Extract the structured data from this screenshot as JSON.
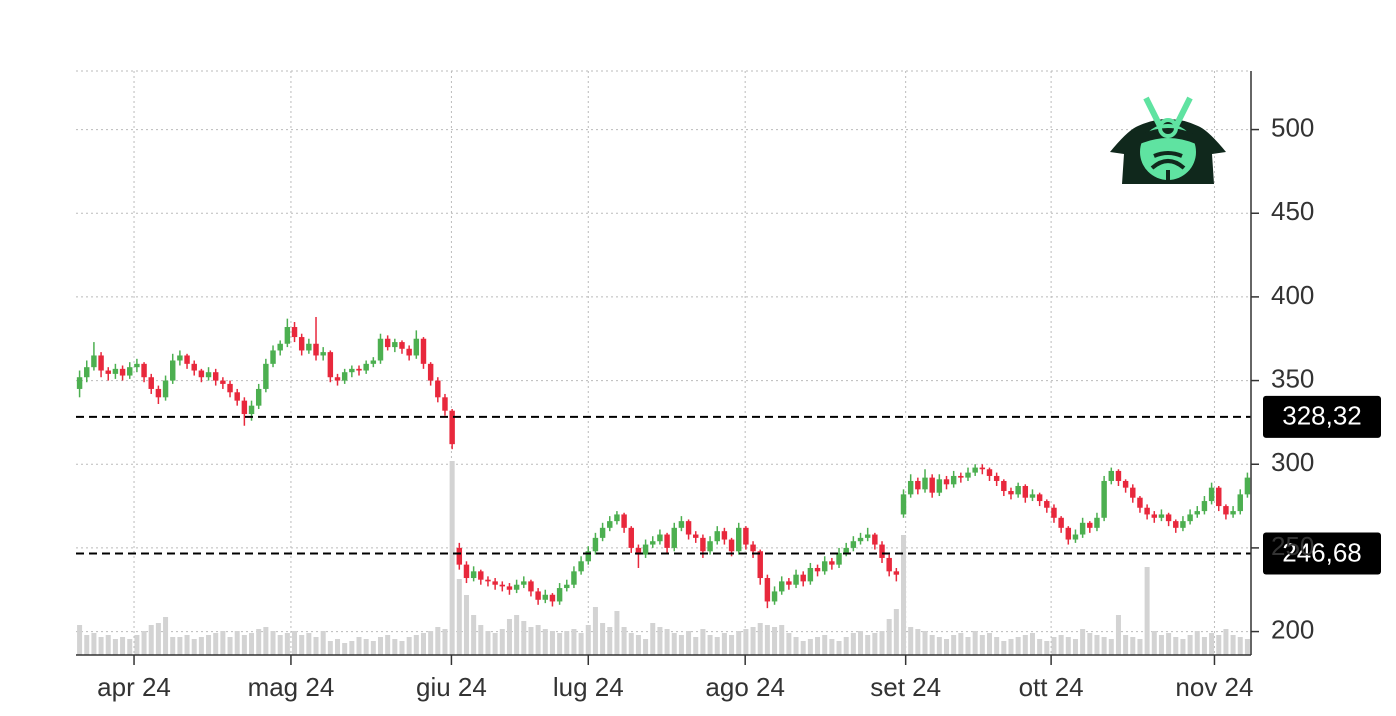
{
  "chart_data": {
    "type": "candlestick",
    "xlim": [
      0,
      164
    ],
    "ylim": [
      186,
      535
    ],
    "yticks": [
      200,
      250,
      300,
      350,
      400,
      450,
      500
    ],
    "xticks": [
      {
        "value": 8.1,
        "label": "apr 24"
      },
      {
        "value": 30.0,
        "label": "mag 24"
      },
      {
        "value": 52.4,
        "label": "giu 24"
      },
      {
        "value": 71.5,
        "label": "lug 24"
      },
      {
        "value": 93.4,
        "label": "ago 24"
      },
      {
        "value": 115.8,
        "label": "set 24"
      },
      {
        "value": 136.1,
        "label": "ott 24"
      },
      {
        "value": 158.9,
        "label": "nov 24"
      }
    ],
    "grid": true,
    "up_color": "#4caf50",
    "down_color": "#e8283c",
    "volume_color": "#d3d3d3",
    "vlim": [
      0,
      100
    ],
    "hlines": [
      {
        "value": 328.32,
        "label": "328,32"
      },
      {
        "value": 246.68,
        "label": "246,68"
      }
    ],
    "candles": [
      [
        345,
        356,
        340,
        352
      ],
      [
        352,
        362,
        349,
        358
      ],
      [
        358,
        373,
        356,
        365
      ],
      [
        365,
        367,
        352,
        356
      ],
      [
        356,
        358,
        350,
        354
      ],
      [
        354,
        360,
        351,
        357
      ],
      [
        357,
        359,
        350,
        353
      ],
      [
        353,
        361,
        351,
        358
      ],
      [
        358,
        363,
        355,
        360
      ],
      [
        360,
        361,
        349,
        352
      ],
      [
        352,
        354,
        342,
        345
      ],
      [
        345,
        347,
        336,
        340
      ],
      [
        340,
        353,
        338,
        350
      ],
      [
        350,
        366,
        348,
        362
      ],
      [
        362,
        368,
        359,
        365
      ],
      [
        365,
        366,
        357,
        360
      ],
      [
        360,
        362,
        353,
        356
      ],
      [
        356,
        357,
        349,
        352
      ],
      [
        352,
        358,
        350,
        355
      ],
      [
        355,
        357,
        347,
        350
      ],
      [
        350,
        352,
        345,
        348
      ],
      [
        348,
        350,
        340,
        343
      ],
      [
        343,
        345,
        335,
        338
      ],
      [
        338,
        340,
        323,
        330
      ],
      [
        330,
        338,
        326,
        335
      ],
      [
        335,
        348,
        333,
        345
      ],
      [
        345,
        363,
        343,
        360
      ],
      [
        360,
        371,
        358,
        368
      ],
      [
        368,
        374,
        365,
        372
      ],
      [
        372,
        387,
        370,
        382
      ],
      [
        382,
        385,
        373,
        376
      ],
      [
        376,
        378,
        365,
        368
      ],
      [
        368,
        375,
        366,
        372
      ],
      [
        372,
        388,
        362,
        365
      ],
      [
        365,
        370,
        362,
        367
      ],
      [
        367,
        368,
        349,
        352
      ],
      [
        352,
        354,
        347,
        350
      ],
      [
        350,
        357,
        348,
        355
      ],
      [
        355,
        359,
        352,
        357
      ],
      [
        357,
        359,
        353,
        356
      ],
      [
        356,
        362,
        354,
        360
      ],
      [
        360,
        364,
        358,
        362
      ],
      [
        362,
        378,
        360,
        375
      ],
      [
        375,
        377,
        368,
        370
      ],
      [
        370,
        375,
        367,
        373
      ],
      [
        373,
        374,
        366,
        369
      ],
      [
        369,
        371,
        362,
        365
      ],
      [
        365,
        380,
        363,
        375
      ],
      [
        375,
        376,
        357,
        360
      ],
      [
        360,
        361,
        347,
        350
      ],
      [
        350,
        352,
        337,
        340
      ],
      [
        340,
        342,
        329,
        332
      ],
      [
        332,
        333,
        309,
        312
      ],
      [
        250,
        253,
        237,
        240
      ],
      [
        240,
        242,
        229,
        232
      ],
      [
        232,
        239,
        230,
        236
      ],
      [
        236,
        237,
        228,
        231
      ],
      [
        231,
        233,
        227,
        230
      ],
      [
        230,
        232,
        225,
        228
      ],
      [
        228,
        230,
        224,
        227
      ],
      [
        227,
        229,
        222,
        225
      ],
      [
        225,
        231,
        223,
        228
      ],
      [
        228,
        233,
        226,
        230
      ],
      [
        230,
        231,
        221,
        224
      ],
      [
        224,
        226,
        216,
        219
      ],
      [
        219,
        225,
        217,
        222
      ],
      [
        222,
        223,
        215,
        218
      ],
      [
        218,
        229,
        216,
        226
      ],
      [
        226,
        231,
        224,
        228
      ],
      [
        228,
        239,
        226,
        236
      ],
      [
        236,
        245,
        234,
        242
      ],
      [
        242,
        251,
        240,
        248
      ],
      [
        248,
        259,
        246,
        256
      ],
      [
        256,
        265,
        254,
        262
      ],
      [
        262,
        269,
        260,
        266
      ],
      [
        266,
        272,
        264,
        270
      ],
      [
        270,
        271,
        259,
        262
      ],
      [
        262,
        263,
        247,
        250
      ],
      [
        250,
        252,
        238,
        246
      ],
      [
        246,
        255,
        244,
        252
      ],
      [
        252,
        257,
        250,
        254
      ],
      [
        254,
        261,
        252,
        258
      ],
      [
        258,
        259,
        247,
        250
      ],
      [
        250,
        265,
        248,
        262
      ],
      [
        262,
        269,
        260,
        266
      ],
      [
        266,
        267,
        255,
        258
      ],
      [
        258,
        260,
        253,
        256
      ],
      [
        256,
        258,
        244,
        248
      ],
      [
        248,
        257,
        246,
        254
      ],
      [
        254,
        263,
        252,
        260
      ],
      [
        260,
        262,
        252,
        255
      ],
      [
        255,
        256,
        245,
        248
      ],
      [
        248,
        265,
        246,
        262
      ],
      [
        262,
        263,
        249,
        252
      ],
      [
        252,
        254,
        244,
        248
      ],
      [
        248,
        249,
        228,
        232
      ],
      [
        232,
        234,
        214,
        218
      ],
      [
        218,
        227,
        216,
        224
      ],
      [
        224,
        233,
        222,
        230
      ],
      [
        230,
        232,
        225,
        228
      ],
      [
        228,
        237,
        226,
        234
      ],
      [
        234,
        236,
        227,
        230
      ],
      [
        230,
        241,
        228,
        238
      ],
      [
        238,
        240,
        233,
        236
      ],
      [
        236,
        245,
        234,
        242
      ],
      [
        242,
        244,
        237,
        240
      ],
      [
        240,
        250,
        238,
        247
      ],
      [
        247,
        253,
        245,
        250
      ],
      [
        250,
        257,
        248,
        254
      ],
      [
        254,
        259,
        252,
        256
      ],
      [
        256,
        262,
        254,
        258
      ],
      [
        258,
        259,
        249,
        252
      ],
      [
        252,
        254,
        241,
        244
      ],
      [
        244,
        246,
        233,
        236
      ],
      [
        236,
        238,
        230,
        234
      ],
      [
        270,
        285,
        268,
        282
      ],
      [
        282,
        294,
        280,
        290
      ],
      [
        290,
        292,
        282,
        285
      ],
      [
        285,
        297,
        283,
        292
      ],
      [
        292,
        294,
        280,
        283
      ],
      [
        283,
        294,
        281,
        291
      ],
      [
        291,
        293,
        285,
        288
      ],
      [
        288,
        296,
        286,
        293
      ],
      [
        293,
        295,
        289,
        292
      ],
      [
        292,
        298,
        290,
        295
      ],
      [
        295,
        300,
        293,
        298
      ],
      [
        298,
        300,
        294,
        297
      ],
      [
        297,
        298,
        290,
        293
      ],
      [
        293,
        295,
        287,
        290
      ],
      [
        290,
        291,
        281,
        284
      ],
      [
        284,
        286,
        279,
        282
      ],
      [
        282,
        289,
        280,
        287
      ],
      [
        287,
        288,
        277,
        280
      ],
      [
        280,
        285,
        278,
        282
      ],
      [
        282,
        283,
        275,
        278
      ],
      [
        278,
        279,
        271,
        274
      ],
      [
        274,
        276,
        265,
        268
      ],
      [
        268,
        269,
        259,
        262
      ],
      [
        262,
        263,
        252,
        255
      ],
      [
        255,
        261,
        253,
        258
      ],
      [
        258,
        268,
        256,
        265
      ],
      [
        265,
        266,
        259,
        262
      ],
      [
        262,
        271,
        260,
        268
      ],
      [
        268,
        293,
        266,
        290
      ],
      [
        290,
        298,
        288,
        296
      ],
      [
        296,
        297,
        287,
        290
      ],
      [
        290,
        291,
        283,
        286
      ],
      [
        286,
        288,
        277,
        280
      ],
      [
        280,
        281,
        271,
        274
      ],
      [
        274,
        276,
        267,
        270
      ],
      [
        270,
        272,
        265,
        268
      ],
      [
        268,
        273,
        266,
        270
      ],
      [
        270,
        271,
        263,
        266
      ],
      [
        266,
        267,
        259,
        262
      ],
      [
        262,
        269,
        260,
        266
      ],
      [
        266,
        273,
        264,
        270
      ],
      [
        270,
        275,
        268,
        272
      ],
      [
        272,
        281,
        270,
        278
      ],
      [
        278,
        289,
        276,
        286
      ],
      [
        286,
        287,
        272,
        275
      ],
      [
        275,
        276,
        267,
        270
      ],
      [
        270,
        275,
        268,
        272
      ],
      [
        272,
        285,
        270,
        282
      ],
      [
        282,
        295,
        280,
        292
      ]
    ],
    "volume": [
      15,
      10,
      11,
      9,
      10,
      8,
      9,
      8,
      10,
      12,
      15,
      16,
      19,
      9,
      9,
      10,
      8,
      9,
      10,
      11,
      12,
      9,
      12,
      10,
      11,
      13,
      14,
      12,
      10,
      11,
      12,
      10,
      11,
      9,
      12,
      7,
      8,
      6,
      7,
      9,
      8,
      7,
      9,
      10,
      8,
      7,
      9,
      10,
      11,
      12,
      14,
      13,
      97,
      38,
      30,
      20,
      15,
      12,
      11,
      13,
      18,
      20,
      17,
      14,
      15,
      13,
      12,
      11,
      12,
      13,
      11,
      15,
      24,
      16,
      14,
      22,
      14,
      11,
      10,
      8,
      16,
      14,
      13,
      11,
      10,
      12,
      9,
      13,
      10,
      9,
      11,
      10,
      12,
      13,
      14,
      16,
      15,
      14,
      15,
      11,
      9,
      7,
      8,
      9,
      10,
      8,
      7,
      9,
      11,
      12,
      10,
      11,
      12,
      18,
      23,
      60,
      14,
      13,
      12,
      10,
      9,
      8,
      10,
      11,
      9,
      12,
      10,
      11,
      9,
      7,
      8,
      9,
      10,
      11,
      8,
      7,
      9,
      10,
      9,
      8,
      13,
      11,
      10,
      9,
      8,
      20,
      10,
      9,
      8,
      44,
      12,
      10,
      11,
      9,
      8,
      10,
      12,
      9,
      11,
      10,
      13,
      10,
      9,
      8
    ]
  }
}
